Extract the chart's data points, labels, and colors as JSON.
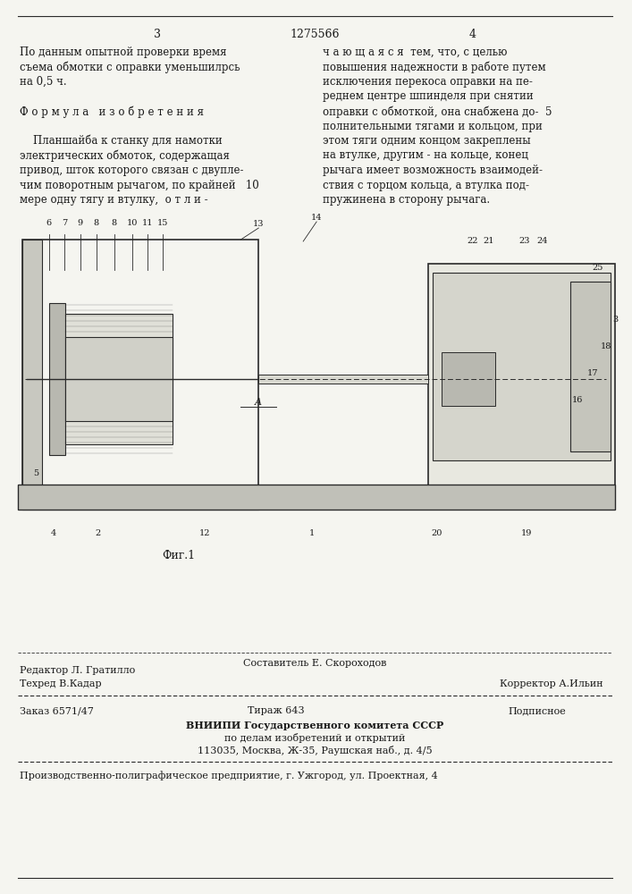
{
  "page_number_left": "3",
  "page_number_center": "1275566",
  "page_number_right": "4",
  "col_left_text": [
    "По данным опытной проверки время",
    "съема обмотки с оправки уменьшилрсь",
    "на 0,5 ч.",
    "",
    "Ф о р м у л а   и з о б р е т е н и я",
    "",
    "    Планшайба к станку для намотки",
    "электрических обмоток, содержащая",
    "привод, шток которого связан с двупле-",
    "чим поворотным рычагом, по крайней   10",
    "мере одну тягу и втулку,  о т л и -"
  ],
  "col_right_text": [
    "ч а ю щ а я с я  тем, что, с целью",
    "повышения надежности в работе путем",
    "исключения перекоса оправки на пе-",
    "реднем центре шпинделя при снятии",
    "оправки с обмоткой, она снабжена до-  5",
    "полнительными тягами и кольцом, при",
    "этом тяги одним концом закреплены",
    "на втулке, другим - на кольце, конец",
    "рычага имеет возможность взаимодей-",
    "ствия с торцом кольца, а втулка под-",
    "пружинена в сторону рычага."
  ],
  "fig_caption": "Фиг.1",
  "editor_line": "Редактор Л. Гратилло",
  "composer_line": "Составитель Е. Скороходов",
  "techred_line": "Техред В.Кадар",
  "corrector_line": "Корректор А.Ильин",
  "order_line": "Заказ 6571/47",
  "tirazh_line": "Тираж 643",
  "podpisnoe_line": "Подписное",
  "vniiipi_line1": "ВНИИПИ Государственного комитета СССР",
  "vniiipi_line2": "по делам изобретений и открытий",
  "vniiipi_line3": "113035, Москва, Ж-35, Раушская наб., д. 4/5",
  "production_line": "Производственно-полиграфическое предприятие, г. Ужгород, ул. Проектная, 4",
  "bg_color": "#f5f5f0",
  "text_color": "#1a1a1a",
  "line_color": "#2a2a2a"
}
